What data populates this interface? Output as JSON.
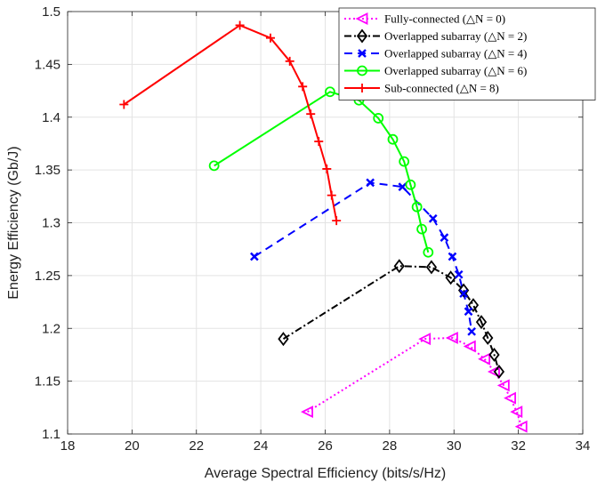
{
  "chart_data": {
    "type": "line",
    "xlabel": "Average Spectral Efficiency (bits/s/Hz)",
    "ylabel": "Energy Efficiency (Gb/J)",
    "xlim": [
      18,
      34
    ],
    "ylim": [
      1.1,
      1.5
    ],
    "xticks": [
      "18",
      "20",
      "22",
      "24",
      "26",
      "28",
      "30",
      "32",
      "34"
    ],
    "yticks": [
      "1.1",
      "1.15",
      "1.2",
      "1.25",
      "1.3",
      "1.35",
      "1.4",
      "1.45",
      "1.5"
    ],
    "grid": true,
    "legend_position": "top-right",
    "series": [
      {
        "name": "Fully-connected (△N = 0)",
        "color": "#ff00ff",
        "line": "dotted",
        "marker": "triangle-left",
        "x": [
          25.45,
          29.1,
          29.95,
          30.5,
          30.95,
          31.25,
          31.55,
          31.75,
          31.95,
          32.1
        ],
        "y": [
          1.121,
          1.19,
          1.191,
          1.183,
          1.171,
          1.159,
          1.146,
          1.134,
          1.121,
          1.107
        ]
      },
      {
        "name": "Overlapped subarray (△N = 2)",
        "color": "#000000",
        "line": "dashdot",
        "marker": "diamond",
        "x": [
          24.7,
          28.3,
          29.3,
          29.9,
          30.3,
          30.6,
          30.85,
          31.05,
          31.25,
          31.4
        ],
        "y": [
          1.19,
          1.259,
          1.258,
          1.248,
          1.236,
          1.222,
          1.206,
          1.191,
          1.175,
          1.159
        ]
      },
      {
        "name": "Overlapped subarray (△N = 4)",
        "color": "#0000ff",
        "line": "dashed",
        "marker": "x",
        "x": [
          23.8,
          27.4,
          28.4,
          29.35,
          29.7,
          29.95,
          30.15,
          30.3,
          30.45,
          30.55
        ],
        "y": [
          1.268,
          1.338,
          1.334,
          1.304,
          1.286,
          1.268,
          1.251,
          1.233,
          1.216,
          1.197
        ]
      },
      {
        "name": "Overlapped subarray (△N = 6)",
        "color": "#00ff00",
        "line": "solid",
        "marker": "circle",
        "x": [
          22.55,
          26.15,
          27.05,
          27.65,
          28.1,
          28.45,
          28.65,
          28.85,
          29.0,
          29.2
        ],
        "y": [
          1.354,
          1.424,
          1.416,
          1.399,
          1.379,
          1.358,
          1.336,
          1.315,
          1.294,
          1.272
        ]
      },
      {
        "name": "Sub-connected (△N = 8)",
        "color": "#ff0000",
        "line": "solid",
        "marker": "plus",
        "x": [
          19.75,
          23.35,
          24.3,
          24.9,
          25.3,
          25.55,
          25.8,
          26.05,
          26.2,
          26.35
        ],
        "y": [
          1.412,
          1.487,
          1.475,
          1.453,
          1.429,
          1.403,
          1.377,
          1.351,
          1.326,
          1.302
        ]
      }
    ]
  }
}
